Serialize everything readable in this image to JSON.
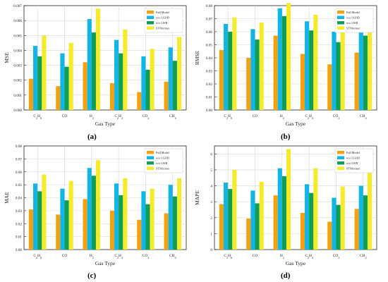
{
  "chart_data": [
    {
      "type": "bar",
      "panel_label": "(a)",
      "categories": [
        "C2H6",
        "CO",
        "H2",
        "C2H4",
        "CO2",
        "CH4"
      ],
      "category_labels": [
        "C2H6",
        "CO",
        "H2",
        "C2H4",
        "CO2",
        "CH4"
      ],
      "xlabel": "Gas Type",
      "ylabel": "MSE",
      "ylim": [
        0,
        0.007
      ],
      "yticks": [
        "0.000",
        "0.001",
        "0.002",
        "0.003",
        "0.004",
        "0.005",
        "0.006",
        "0.007"
      ],
      "ytick_values": [
        0,
        0.001,
        0.002,
        0.003,
        0.004,
        0.005,
        0.006,
        0.007
      ],
      "legend_position": "top-right",
      "grid": true,
      "series": [
        {
          "name": "Full Model",
          "color": "#F5A00F",
          "values": [
            0.0021,
            0.0016,
            0.0032,
            0.0018,
            0.0012,
            0.0019
          ]
        },
        {
          "name": "w/o LGOD",
          "color": "#12B5E6",
          "values": [
            0.0043,
            0.0038,
            0.0061,
            0.0047,
            0.0036,
            0.0042
          ]
        },
        {
          "name": "w/o LWR",
          "color": "#0E9F55",
          "values": [
            0.0036,
            0.0029,
            0.0052,
            0.0038,
            0.0027,
            0.0033
          ]
        },
        {
          "name": "STNformer",
          "color": "#F6EB2A",
          "values": [
            0.005,
            0.0045,
            0.0068,
            0.0054,
            0.0041,
            0.0049
          ]
        }
      ]
    },
    {
      "type": "bar",
      "panel_label": "(b)",
      "categories": [
        "C2H6",
        "CO",
        "H2",
        "C2H4",
        "CO2",
        "CH4"
      ],
      "category_labels": [
        "C2H6",
        "CO",
        "H2",
        "C2H4",
        "CO2",
        "CH4"
      ],
      "xlabel": "Gas Type",
      "ylabel": "RMSE",
      "ylim": [
        0,
        0.08
      ],
      "yticks": [
        "0.00",
        "0.01",
        "0.02",
        "0.03",
        "0.04",
        "0.05",
        "0.06",
        "0.07",
        "0.08"
      ],
      "ytick_values": [
        0,
        0.01,
        0.02,
        0.03,
        0.04,
        0.05,
        0.06,
        0.07,
        0.08
      ],
      "legend_position": "top-right",
      "grid": true,
      "series": [
        {
          "name": "Full Model",
          "color": "#F5A00F",
          "values": [
            0.046,
            0.04,
            0.057,
            0.043,
            0.035,
            0.044
          ]
        },
        {
          "name": "w/o LGOD",
          "color": "#12B5E6",
          "values": [
            0.066,
            0.062,
            0.078,
            0.068,
            0.06,
            0.065
          ]
        },
        {
          "name": "w/o LWR",
          "color": "#0E9F55",
          "values": [
            0.06,
            0.054,
            0.072,
            0.061,
            0.052,
            0.057
          ]
        },
        {
          "name": "STNformer",
          "color": "#F6EB2A",
          "values": [
            0.071,
            0.067,
            0.082,
            0.073,
            0.064,
            0.07
          ]
        }
      ]
    },
    {
      "type": "bar",
      "panel_label": "(c)",
      "categories": [
        "C2H6",
        "CO",
        "H2",
        "C2H4",
        "CO2",
        "CH4"
      ],
      "category_labels": [
        "C2H6",
        "CO",
        "H2",
        "C2H4",
        "CO2",
        "CH4"
      ],
      "xlabel": "Gas Type",
      "ylabel": "MAE",
      "ylim": [
        0,
        0.08
      ],
      "yticks": [
        "0.00",
        "0.01",
        "0.02",
        "0.03",
        "0.04",
        "0.05",
        "0.06",
        "0.07",
        "0.08"
      ],
      "ytick_values": [
        0,
        0.01,
        0.02,
        0.03,
        0.04,
        0.05,
        0.06,
        0.07,
        0.08
      ],
      "legend_position": "top-right",
      "grid": true,
      "series": [
        {
          "name": "Full Model",
          "color": "#F5A00F",
          "values": [
            0.031,
            0.027,
            0.039,
            0.03,
            0.023,
            0.028
          ]
        },
        {
          "name": "w/o LGOD",
          "color": "#12B5E6",
          "values": [
            0.051,
            0.047,
            0.063,
            0.051,
            0.045,
            0.05
          ]
        },
        {
          "name": "w/o LWR",
          "color": "#0E9F55",
          "values": [
            0.045,
            0.038,
            0.057,
            0.042,
            0.035,
            0.041
          ]
        },
        {
          "name": "STNformer",
          "color": "#F6EB2A",
          "values": [
            0.058,
            0.053,
            0.069,
            0.055,
            0.047,
            0.055
          ]
        }
      ]
    },
    {
      "type": "bar",
      "panel_label": "(d)",
      "categories": [
        "C2H6",
        "CO",
        "H2",
        "C2H4",
        "CO2",
        "CH4"
      ],
      "category_labels": [
        "C2H6",
        "CO",
        "H2",
        "C2H4",
        "CO2",
        "CH4"
      ],
      "xlabel": "Gas Type",
      "ylabel": "MAPE",
      "ylim": [
        0,
        6.5
      ],
      "yticks": [
        "0",
        "1",
        "2",
        "3",
        "4",
        "5",
        "6"
      ],
      "ytick_values": [
        0,
        1,
        2,
        3,
        4,
        5,
        6
      ],
      "legend_position": "top-right",
      "grid": true,
      "series": [
        {
          "name": "Full Model",
          "color": "#F5A00F",
          "values": [
            2.85,
            1.95,
            3.4,
            2.3,
            1.75,
            2.55
          ]
        },
        {
          "name": "w/o LGOD",
          "color": "#12B5E6",
          "values": [
            4.2,
            3.7,
            5.1,
            4.1,
            3.25,
            4.0
          ]
        },
        {
          "name": "w/o LWR",
          "color": "#0E9F55",
          "values": [
            3.8,
            2.9,
            4.6,
            3.55,
            2.8,
            3.4
          ]
        },
        {
          "name": "STNformer",
          "color": "#F6EB2A",
          "values": [
            5.0,
            4.25,
            6.3,
            5.1,
            3.95,
            4.9
          ]
        }
      ]
    }
  ]
}
